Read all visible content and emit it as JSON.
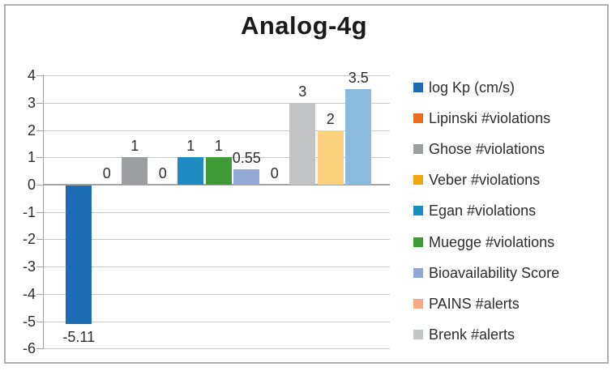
{
  "chart_data": {
    "type": "bar",
    "title": "Analog-4g",
    "xlabel": "",
    "ylabel": "",
    "ylim": [
      -6,
      4
    ],
    "yticks": [
      4,
      3,
      2,
      1,
      0,
      -1,
      -2,
      -3,
      -4,
      -5,
      -6
    ],
    "grid": true,
    "legend_position": "right",
    "series": [
      {
        "name": "log Kp (cm/s)",
        "value": -5.11,
        "label": "-5.11",
        "color": "#1e6cb5",
        "in_legend": true
      },
      {
        "name": "Lipinski #violations",
        "value": 0,
        "label": "0",
        "color": "#ea6d1f",
        "in_legend": true
      },
      {
        "name": "Ghose #violations",
        "value": 1,
        "label": "1",
        "color": "#9c9ea1",
        "in_legend": true
      },
      {
        "name": "Veber #violations",
        "value": 0,
        "label": "0",
        "color": "#f1a60e",
        "in_legend": true
      },
      {
        "name": "Egan #violations",
        "value": 1,
        "label": "1",
        "color": "#1e8bc2",
        "in_legend": true
      },
      {
        "name": "Muegge #violations",
        "value": 1,
        "label": "1",
        "color": "#3f9b35",
        "in_legend": true
      },
      {
        "name": "Bioavailability Score",
        "value": 0.55,
        "label": "0.55",
        "color": "#92a8d7",
        "in_legend": true
      },
      {
        "name": "PAINS #alerts",
        "value": 0,
        "label": "0",
        "color": "#f5a987",
        "in_legend": true
      },
      {
        "name": "Brenk #alerts",
        "value": 3,
        "label": "3",
        "color": "#c3c4c6",
        "in_legend": true
      },
      {
        "name": "",
        "value": 2,
        "label": "2",
        "color": "#fbd17d",
        "in_legend": false
      },
      {
        "name": "",
        "value": 3.5,
        "label": "3.5",
        "color": "#8bbadf",
        "in_legend": false
      }
    ]
  },
  "colors": {
    "gridline": "#c8c8c8",
    "axis": "#a3a3a3",
    "frame_border": "#b0b0b0",
    "title_text": "#1a1a1a",
    "label_text": "#2d2d2d"
  }
}
